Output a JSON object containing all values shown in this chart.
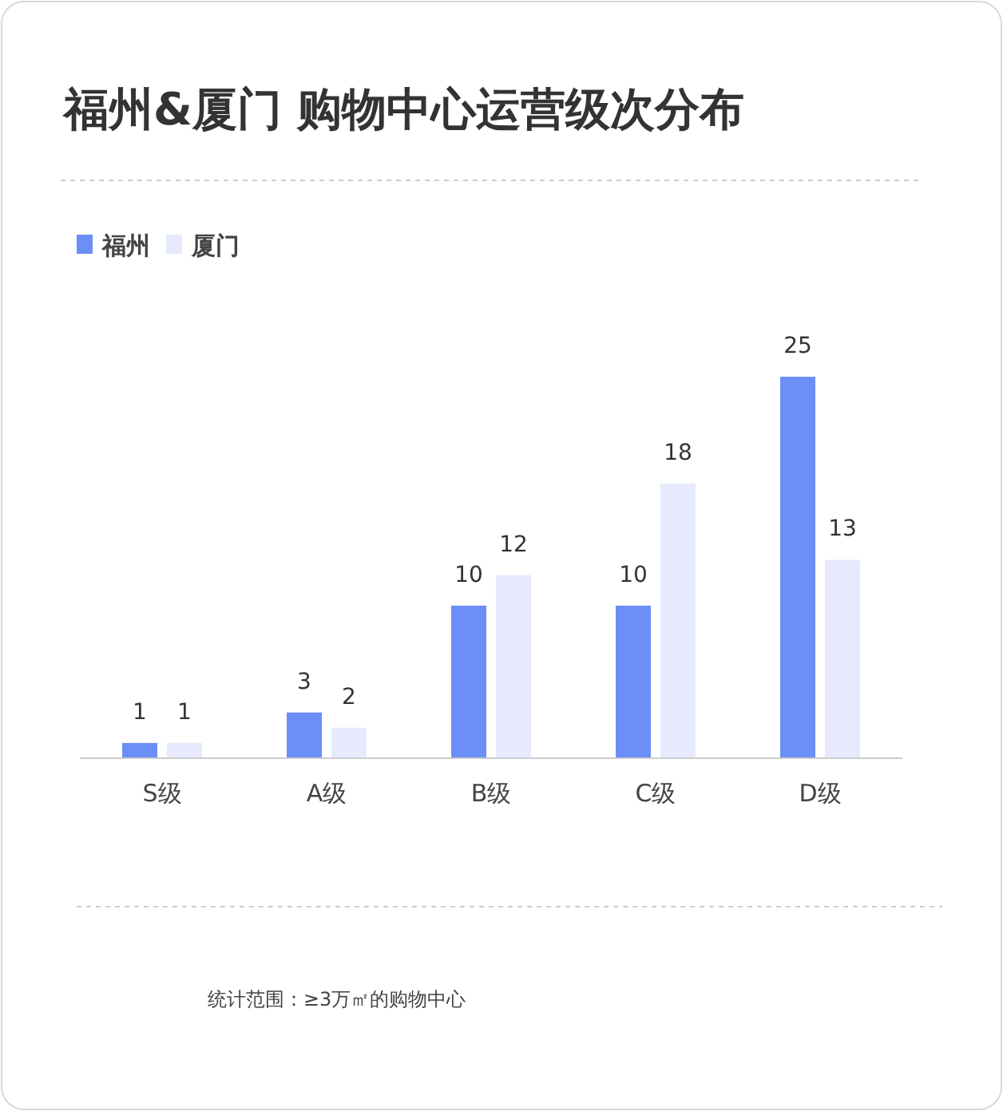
{
  "chart_data": {
    "type": "bar",
    "title": "福州&厦门 购物中心运营级次分布",
    "categories": [
      "S级",
      "A级",
      "B级",
      "C级",
      "D级"
    ],
    "series": [
      {
        "name": "福州",
        "color": "#6b8ff7",
        "values": [
          1,
          3,
          10,
          10,
          25
        ]
      },
      {
        "name": "厦门",
        "color": "#e6eafc",
        "values": [
          1,
          2,
          12,
          18,
          13
        ]
      }
    ],
    "data_labels": true,
    "legend": "top left",
    "annotations": [
      "统计范围：≥3万㎡的购物中心"
    ]
  }
}
